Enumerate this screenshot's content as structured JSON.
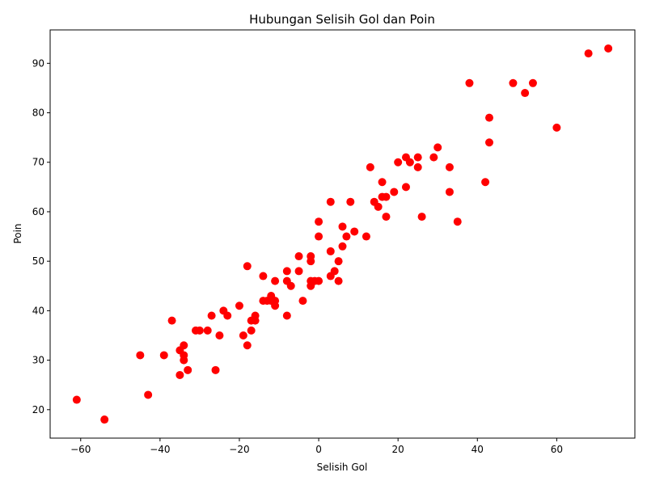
{
  "chart_data": {
    "type": "scatter",
    "title": "Hubungan Selisih Gol dan Poin",
    "xlabel": "Selisih Gol",
    "ylabel": "Poin",
    "xlim": [
      -67.7,
      79.7
    ],
    "ylim": [
      14.25,
      96.75
    ],
    "xticks": [
      -60,
      -40,
      -20,
      0,
      20,
      40,
      60
    ],
    "yticks": [
      20,
      30,
      40,
      50,
      60,
      70,
      80,
      90
    ],
    "xtick_labels": [
      "−60",
      "−40",
      "−20",
      "0",
      "20",
      "40",
      "60"
    ],
    "ytick_labels": [
      "20",
      "30",
      "40",
      "50",
      "60",
      "70",
      "80",
      "90"
    ],
    "grid": false,
    "legend": "none",
    "marker_color": "#ff0000",
    "points": [
      {
        "x": -61,
        "y": 22
      },
      {
        "x": -54,
        "y": 18
      },
      {
        "x": -45,
        "y": 31
      },
      {
        "x": -43,
        "y": 23
      },
      {
        "x": -39,
        "y": 31
      },
      {
        "x": -37,
        "y": 38
      },
      {
        "x": -35,
        "y": 32
      },
      {
        "x": -35,
        "y": 27
      },
      {
        "x": -34,
        "y": 33
      },
      {
        "x": -34,
        "y": 31
      },
      {
        "x": -34,
        "y": 30
      },
      {
        "x": -33,
        "y": 28
      },
      {
        "x": -31,
        "y": 36
      },
      {
        "x": -30,
        "y": 36
      },
      {
        "x": -28,
        "y": 36
      },
      {
        "x": -27,
        "y": 39
      },
      {
        "x": -26,
        "y": 28
      },
      {
        "x": -25,
        "y": 35
      },
      {
        "x": -24,
        "y": 40
      },
      {
        "x": -23,
        "y": 39
      },
      {
        "x": -20,
        "y": 41
      },
      {
        "x": -19,
        "y": 35
      },
      {
        "x": -18,
        "y": 33
      },
      {
        "x": -18,
        "y": 49
      },
      {
        "x": -17,
        "y": 38
      },
      {
        "x": -17,
        "y": 36
      },
      {
        "x": -16,
        "y": 39
      },
      {
        "x": -16,
        "y": 38
      },
      {
        "x": -14,
        "y": 47
      },
      {
        "x": -14,
        "y": 42
      },
      {
        "x": -13,
        "y": 42
      },
      {
        "x": -12,
        "y": 43
      },
      {
        "x": -12,
        "y": 42
      },
      {
        "x": -11,
        "y": 42
      },
      {
        "x": -11,
        "y": 41
      },
      {
        "x": -11,
        "y": 46
      },
      {
        "x": -8,
        "y": 48
      },
      {
        "x": -8,
        "y": 46
      },
      {
        "x": -8,
        "y": 39
      },
      {
        "x": -7,
        "y": 45
      },
      {
        "x": -5,
        "y": 51
      },
      {
        "x": -5,
        "y": 48
      },
      {
        "x": -4,
        "y": 42
      },
      {
        "x": -2,
        "y": 51
      },
      {
        "x": -2,
        "y": 50
      },
      {
        "x": -2,
        "y": 46
      },
      {
        "x": -2,
        "y": 45
      },
      {
        "x": -1,
        "y": 46
      },
      {
        "x": 0,
        "y": 58
      },
      {
        "x": 0,
        "y": 55
      },
      {
        "x": 0,
        "y": 46
      },
      {
        "x": 3,
        "y": 62
      },
      {
        "x": 3,
        "y": 52
      },
      {
        "x": 3,
        "y": 47
      },
      {
        "x": 4,
        "y": 48
      },
      {
        "x": 5,
        "y": 50
      },
      {
        "x": 5,
        "y": 46
      },
      {
        "x": 6,
        "y": 57
      },
      {
        "x": 6,
        "y": 53
      },
      {
        "x": 7,
        "y": 55
      },
      {
        "x": 8,
        "y": 62
      },
      {
        "x": 9,
        "y": 56
      },
      {
        "x": 12,
        "y": 55
      },
      {
        "x": 13,
        "y": 69
      },
      {
        "x": 14,
        "y": 62
      },
      {
        "x": 15,
        "y": 61
      },
      {
        "x": 16,
        "y": 66
      },
      {
        "x": 16,
        "y": 63
      },
      {
        "x": 17,
        "y": 63
      },
      {
        "x": 17,
        "y": 59
      },
      {
        "x": 19,
        "y": 64
      },
      {
        "x": 20,
        "y": 70
      },
      {
        "x": 22,
        "y": 71
      },
      {
        "x": 22,
        "y": 65
      },
      {
        "x": 23,
        "y": 70
      },
      {
        "x": 25,
        "y": 71
      },
      {
        "x": 25,
        "y": 69
      },
      {
        "x": 26,
        "y": 59
      },
      {
        "x": 29,
        "y": 71
      },
      {
        "x": 30,
        "y": 73
      },
      {
        "x": 33,
        "y": 69
      },
      {
        "x": 33,
        "y": 64
      },
      {
        "x": 35,
        "y": 58
      },
      {
        "x": 38,
        "y": 86
      },
      {
        "x": 42,
        "y": 66
      },
      {
        "x": 43,
        "y": 79
      },
      {
        "x": 43,
        "y": 74
      },
      {
        "x": 49,
        "y": 86
      },
      {
        "x": 52,
        "y": 84
      },
      {
        "x": 54,
        "y": 86
      },
      {
        "x": 60,
        "y": 77
      },
      {
        "x": 68,
        "y": 92
      },
      {
        "x": 73,
        "y": 93
      }
    ]
  }
}
